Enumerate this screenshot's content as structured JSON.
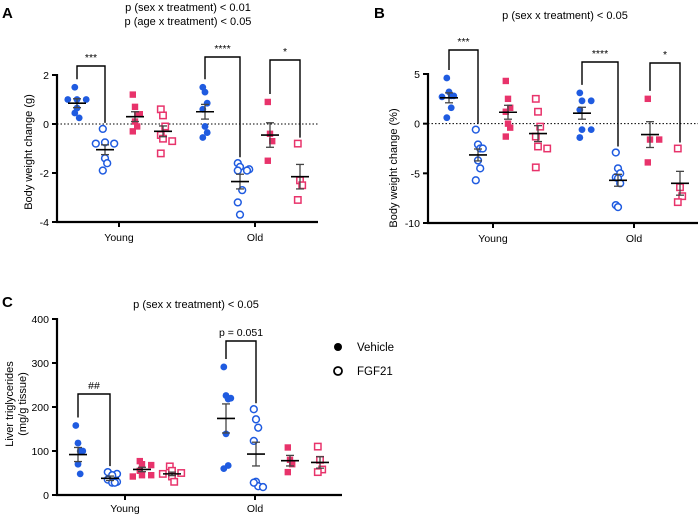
{
  "colors": {
    "male": "#1f5be0",
    "female": "#e8336b",
    "axis": "#000000",
    "error": "#444444"
  },
  "legend": {
    "items": [
      {
        "label": "Vehicle",
        "marker": "filled-circle"
      },
      {
        "label": "FGF21",
        "marker": "open-circle"
      }
    ]
  },
  "chart_data": [
    {
      "panel": "A",
      "type": "scatter",
      "title_lines": [
        "p (sex x treatment) < 0.01",
        "p (age x treatment) < 0.05"
      ],
      "ylabel": "Body weight change (g)",
      "xlabel": "",
      "categories": [
        "Young",
        "Old"
      ],
      "ylim": [
        -4,
        2
      ],
      "yticks": [
        -4,
        -2,
        0,
        2
      ],
      "reference_line": 0,
      "groups": [
        {
          "category": "Young",
          "sex": "male",
          "treatment": "Vehicle",
          "mean": 0.85,
          "sem": 0.18,
          "values": [
            1.5,
            1.0,
            1.0,
            1.0,
            0.65,
            0.25,
            0.45
          ]
        },
        {
          "category": "Young",
          "sex": "male",
          "treatment": "FGF21",
          "mean": -1.05,
          "sem": 0.2,
          "values": [
            -0.2,
            -0.75,
            -0.8,
            -0.8,
            -1.4,
            -1.6,
            -1.9
          ]
        },
        {
          "category": "Young",
          "sex": "female",
          "treatment": "Vehicle",
          "mean": 0.3,
          "sem": 0.2,
          "values": [
            1.2,
            0.7,
            0.4,
            0.4,
            0.1,
            -0.1,
            -0.3
          ]
        },
        {
          "category": "Young",
          "sex": "female",
          "treatment": "FGF21",
          "mean": -0.3,
          "sem": 0.22,
          "values": [
            0.6,
            0.35,
            -0.1,
            -0.45,
            -0.6,
            -0.7,
            -1.2
          ]
        },
        {
          "category": "Old",
          "sex": "male",
          "treatment": "Vehicle",
          "mean": 0.5,
          "sem": 0.3,
          "values": [
            1.5,
            1.3,
            0.85,
            0.6,
            -0.1,
            -0.35,
            -0.55
          ]
        },
        {
          "category": "Old",
          "sex": "male",
          "treatment": "FGF21",
          "mean": -2.35,
          "sem": 0.3,
          "values": [
            -1.6,
            -1.75,
            -1.85,
            -1.9,
            -1.9,
            -2.7,
            -3.2,
            -3.7
          ]
        },
        {
          "category": "Old",
          "sex": "female",
          "treatment": "Vehicle",
          "mean": -0.45,
          "sem": 0.5,
          "values": [
            0.9,
            -0.4,
            -0.7,
            -1.5
          ]
        },
        {
          "category": "Old",
          "sex": "female",
          "treatment": "FGF21",
          "mean": -2.15,
          "sem": 0.5,
          "values": [
            -0.8,
            -2.3,
            -2.5,
            -3.1
          ]
        }
      ],
      "significance": [
        {
          "from_group": 0,
          "to_group": 1,
          "label": "***"
        },
        {
          "from_group": 4,
          "to_group": 5,
          "label": "****"
        },
        {
          "from_group": 6,
          "to_group": 7,
          "label": "*"
        }
      ]
    },
    {
      "panel": "B",
      "type": "scatter",
      "title_lines": [
        "p (sex x treatment) < 0.05"
      ],
      "ylabel": "Body weight change (%)",
      "xlabel": "",
      "categories": [
        "Young",
        "Old"
      ],
      "ylim": [
        -10,
        5
      ],
      "yticks": [
        -10,
        -5,
        0,
        5
      ],
      "reference_line": 0,
      "groups": [
        {
          "category": "Young",
          "sex": "male",
          "treatment": "Vehicle",
          "mean": 2.6,
          "sem": 0.5,
          "values": [
            4.6,
            3.2,
            2.8,
            2.8,
            2.7,
            1.6,
            0.6
          ]
        },
        {
          "category": "Young",
          "sex": "male",
          "treatment": "FGF21",
          "mean": -3.15,
          "sem": 0.6,
          "values": [
            -0.6,
            -2.1,
            -2.5,
            -2.5,
            -3.7,
            -4.5,
            -5.7
          ]
        },
        {
          "category": "Young",
          "sex": "female",
          "treatment": "Vehicle",
          "mean": 1.15,
          "sem": 0.7,
          "values": [
            4.3,
            2.5,
            1.6,
            1.2,
            0.0,
            -0.4,
            -1.3
          ]
        },
        {
          "category": "Young",
          "sex": "female",
          "treatment": "FGF21",
          "mean": -1.0,
          "sem": 0.8,
          "values": [
            2.5,
            1.2,
            -0.3,
            -1.3,
            -2.3,
            -2.5,
            -4.4
          ]
        },
        {
          "category": "Old",
          "sex": "male",
          "treatment": "Vehicle",
          "mean": 1.05,
          "sem": 0.6,
          "values": [
            3.1,
            2.3,
            2.3,
            1.4,
            -0.6,
            -0.6,
            -1.4
          ]
        },
        {
          "category": "Old",
          "sex": "male",
          "treatment": "FGF21",
          "mean": -5.7,
          "sem": 0.6,
          "values": [
            -2.9,
            -4.5,
            -5.0,
            -5.4,
            -5.5,
            -6.0,
            -8.2,
            -8.4
          ]
        },
        {
          "category": "Old",
          "sex": "female",
          "treatment": "Vehicle",
          "mean": -1.1,
          "sem": 1.3,
          "values": [
            2.5,
            -1.6,
            -1.6,
            -3.9
          ]
        },
        {
          "category": "Old",
          "sex": "female",
          "treatment": "FGF21",
          "mean": -6.0,
          "sem": 1.2,
          "values": [
            -2.5,
            -6.4,
            -7.3,
            -7.9
          ]
        }
      ],
      "significance": [
        {
          "from_group": 0,
          "to_group": 1,
          "label": "***"
        },
        {
          "from_group": 4,
          "to_group": 5,
          "label": "****"
        },
        {
          "from_group": 6,
          "to_group": 7,
          "label": "*"
        }
      ]
    },
    {
      "panel": "C",
      "type": "scatter",
      "title_lines": [
        "p (sex x treatment) < 0.05"
      ],
      "ylabel": "Liver triglycerides (mg/g tissue)",
      "ylabel_lines": [
        "Liver triglycerides",
        "(mg/g tissue)"
      ],
      "xlabel": "",
      "categories": [
        "Young",
        "Old"
      ],
      "ylim": [
        0,
        400
      ],
      "yticks": [
        0,
        100,
        200,
        300,
        400
      ],
      "reference_line": null,
      "groups": [
        {
          "category": "Young",
          "sex": "male",
          "treatment": "Vehicle",
          "mean": 92,
          "sem": 16,
          "values": [
            158,
            118,
            100,
            100,
            70,
            48
          ]
        },
        {
          "category": "Young",
          "sex": "male",
          "treatment": "FGF21",
          "mean": 38,
          "sem": 5,
          "values": [
            52,
            48,
            45,
            35,
            30,
            28,
            28
          ]
        },
        {
          "category": "Young",
          "sex": "female",
          "treatment": "Vehicle",
          "mean": 58,
          "sem": 5,
          "values": [
            77,
            70,
            68,
            55,
            45,
            45,
            42
          ]
        },
        {
          "category": "Young",
          "sex": "female",
          "treatment": "FGF21",
          "mean": 48,
          "sem": 4,
          "values": [
            65,
            55,
            50,
            48,
            42,
            30
          ]
        },
        {
          "category": "Old",
          "sex": "male",
          "treatment": "Vehicle",
          "mean": 174,
          "sem": 33,
          "values": [
            291,
            226,
            218,
            220,
            139,
            67,
            60
          ]
        },
        {
          "category": "Old",
          "sex": "male",
          "treatment": "FGF21",
          "mean": 93,
          "sem": 27,
          "values": [
            195,
            172,
            153,
            123,
            30,
            20,
            28,
            18
          ]
        },
        {
          "category": "Old",
          "sex": "female",
          "treatment": "Vehicle",
          "mean": 78,
          "sem": 12,
          "values": [
            108,
            80,
            70,
            52
          ]
        },
        {
          "category": "Old",
          "sex": "female",
          "treatment": "FGF21",
          "mean": 74,
          "sem": 13,
          "values": [
            110,
            80,
            58,
            52
          ]
        }
      ],
      "significance": [
        {
          "from_group": 0,
          "to_group": 1,
          "label": "##"
        },
        {
          "from_group": 4,
          "to_group": 5,
          "label": "p = 0.051"
        }
      ]
    }
  ]
}
